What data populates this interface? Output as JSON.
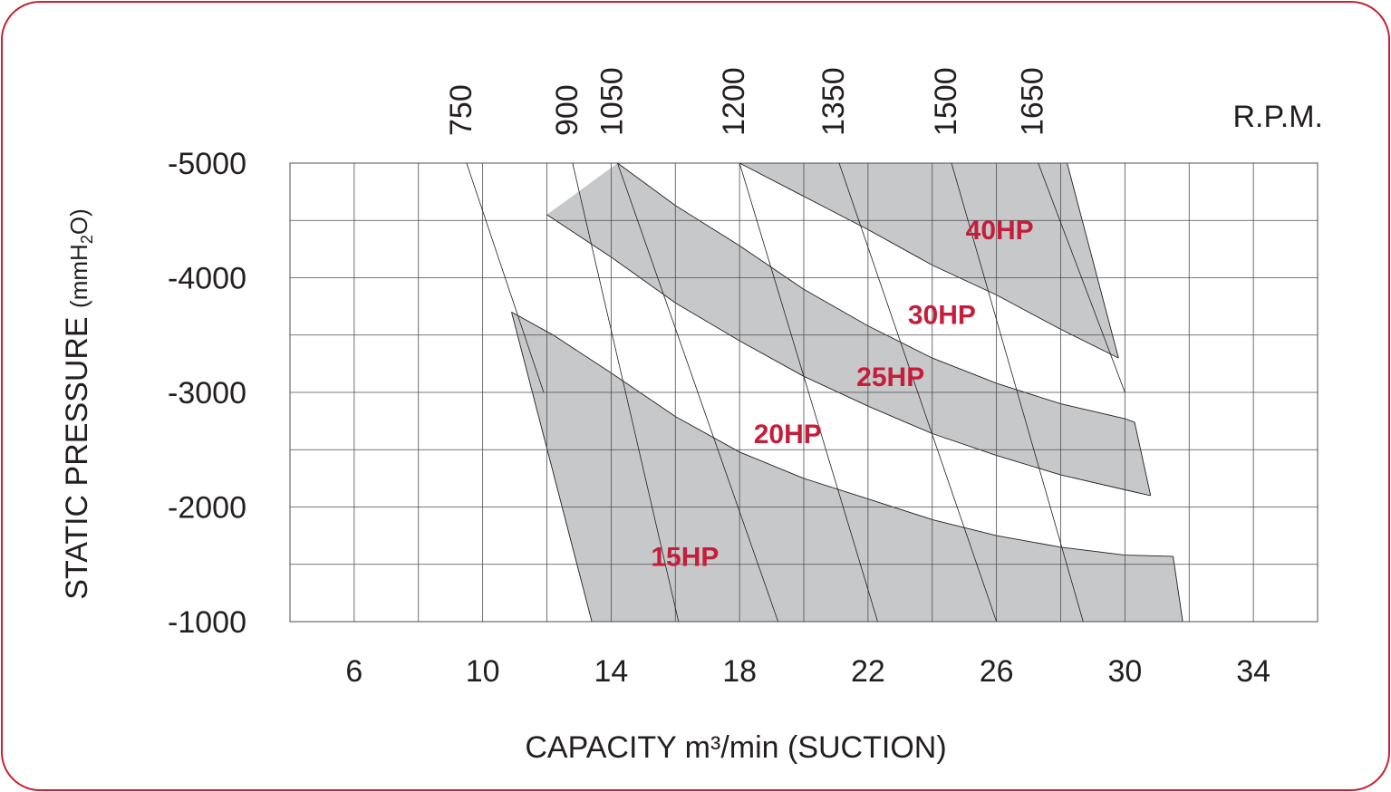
{
  "colors": {
    "frame": "#c8202f",
    "band": "#c7c8ca",
    "grid": "#4d4d4f",
    "curve": "#231f20",
    "hp_label": "#c41e3a",
    "text": "#231f20"
  },
  "chart_data": {
    "type": "area",
    "title": "",
    "xlabel": "CAPACITY m³/min (SUCTION)",
    "ylabel_main": "STATIC PRESSURE",
    "ylabel_unit_prefix": "(mmH",
    "ylabel_unit_sub": "2",
    "ylabel_unit_suffix": "O)",
    "rpm_label": "R.P.M.",
    "xlim": [
      4,
      36
    ],
    "ylim": [
      -1000,
      -5000
    ],
    "grid": true,
    "x_ticks": [
      {
        "value": 6,
        "label": "6"
      },
      {
        "value": 10,
        "label": "10"
      },
      {
        "value": 14,
        "label": "14"
      },
      {
        "value": 18,
        "label": "18"
      },
      {
        "value": 22,
        "label": "22"
      },
      {
        "value": 26,
        "label": "26"
      },
      {
        "value": 30,
        "label": "30"
      },
      {
        "value": 34,
        "label": "34"
      }
    ],
    "y_ticks": [
      {
        "value": -5000,
        "label": "-5000"
      },
      {
        "value": -4000,
        "label": "-4000"
      },
      {
        "value": -3000,
        "label": "-3000"
      },
      {
        "value": -2000,
        "label": "-2000"
      },
      {
        "value": -1000,
        "label": "-1000"
      }
    ],
    "rpm_lines": [
      {
        "rpm": "750",
        "top": [
          9.5,
          -5000
        ],
        "bottom": [
          11.9,
          -3000
        ]
      },
      {
        "rpm": "900",
        "top": [
          12.8,
          -5000
        ],
        "bottom": [
          16.1,
          -1000
        ]
      },
      {
        "rpm": "1050",
        "top": [
          14.2,
          -5000
        ],
        "bottom": [
          19.2,
          -1000
        ]
      },
      {
        "rpm": "1200",
        "top": [
          18.0,
          -5000
        ],
        "bottom": [
          22.3,
          -1000
        ]
      },
      {
        "rpm": "1350",
        "top": [
          21.1,
          -5000
        ],
        "bottom": [
          26.0,
          -1000
        ]
      },
      {
        "rpm": "1500",
        "top": [
          24.6,
          -5000
        ],
        "bottom": [
          28.7,
          -1000
        ]
      },
      {
        "rpm": "1650",
        "top": [
          27.3,
          -5000
        ],
        "bottom": [
          30.0,
          -3000
        ]
      }
    ],
    "bands": [
      {
        "name": "15HP",
        "upper": [
          [
            10.9,
            -3700
          ],
          [
            12.2,
            -3500
          ],
          [
            14.0,
            -3170
          ],
          [
            16.0,
            -2790
          ],
          [
            18.0,
            -2480
          ],
          [
            20.0,
            -2250
          ],
          [
            22.0,
            -2070
          ],
          [
            24.0,
            -1890
          ],
          [
            26.0,
            -1750
          ],
          [
            28.0,
            -1650
          ],
          [
            30.0,
            -1580
          ],
          [
            31.5,
            -1570
          ]
        ],
        "lower": [
          [
            13.4,
            -1000
          ],
          [
            31.8,
            -1000
          ]
        ]
      },
      {
        "name": "25HP",
        "upper": [
          [
            14.2,
            -5000
          ],
          [
            16.0,
            -4630
          ],
          [
            18.0,
            -4280
          ],
          [
            20.0,
            -3900
          ],
          [
            22.0,
            -3580
          ],
          [
            24.0,
            -3300
          ],
          [
            26.0,
            -3080
          ],
          [
            28.0,
            -2900
          ],
          [
            30.0,
            -2770
          ],
          [
            30.3,
            -2740
          ]
        ],
        "lower": [
          [
            12.0,
            -4550
          ],
          [
            14.0,
            -4180
          ],
          [
            16.0,
            -3780
          ],
          [
            18.0,
            -3450
          ],
          [
            20.0,
            -3140
          ],
          [
            22.0,
            -2880
          ],
          [
            24.0,
            -2640
          ],
          [
            26.0,
            -2450
          ],
          [
            28.0,
            -2280
          ],
          [
            30.0,
            -2150
          ],
          [
            30.8,
            -2100
          ]
        ]
      },
      {
        "name": "40HP",
        "upper": [
          [
            28.2,
            -5000
          ]
        ],
        "lower": [
          [
            18.0,
            -5000
          ],
          [
            20.0,
            -4710
          ],
          [
            22.0,
            -4420
          ],
          [
            24.0,
            -4110
          ],
          [
            26.0,
            -3850
          ],
          [
            28.0,
            -3550
          ],
          [
            29.8,
            -3300
          ]
        ]
      }
    ],
    "hp_labels": [
      {
        "text": "15HP",
        "x": 16.3,
        "y": -2150
      },
      {
        "text": "20HP",
        "x": 19.5,
        "y": -3220
      },
      {
        "text": "25HP",
        "x": 22.7,
        "y": -3720
      },
      {
        "text": "30HP",
        "x": 24.3,
        "y": -4260
      },
      {
        "text": "40HP",
        "x": 26.1,
        "y": -5000
      }
    ]
  }
}
